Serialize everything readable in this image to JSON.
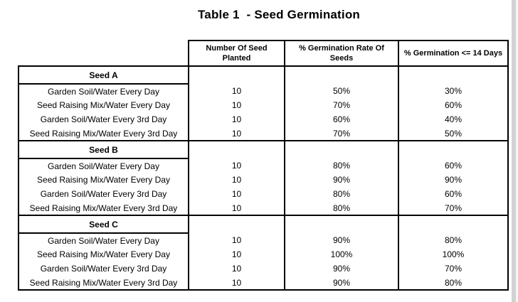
{
  "title": "Table 1  - Seed Germination",
  "colors": {
    "border": "#000000",
    "scrollbar_track": "#d2d2d2",
    "background": "#ffffff"
  },
  "table": {
    "columns": [
      "Number Of Seed Planted",
      "% Germination Rate Of Seeds",
      "% Germination <= 14 Days"
    ],
    "sections": [
      {
        "label": "Seed A",
        "rows": [
          {
            "condition": "Garden Soil/Water Every Day",
            "planted": "10",
            "germination_rate": "50%",
            "germination_14_days": "30%"
          },
          {
            "condition": "Seed Raising Mix/Water Every Day",
            "planted": "10",
            "germination_rate": "70%",
            "germination_14_days": "60%"
          },
          {
            "condition": "Garden Soil/Water Every 3rd Day",
            "planted": "10",
            "germination_rate": "60%",
            "germination_14_days": "40%"
          },
          {
            "condition": "Seed Raising Mix/Water Every 3rd Day",
            "planted": "10",
            "germination_rate": "70%",
            "germination_14_days": "50%"
          }
        ]
      },
      {
        "label": "Seed B",
        "rows": [
          {
            "condition": "Garden Soil/Water Every Day",
            "planted": "10",
            "germination_rate": "80%",
            "germination_14_days": "60%"
          },
          {
            "condition": "Seed Raising Mix/Water Every Day",
            "planted": "10",
            "germination_rate": "90%",
            "germination_14_days": "90%"
          },
          {
            "condition": "Garden Soil/Water Every 3rd Day",
            "planted": "10",
            "germination_rate": "80%",
            "germination_14_days": "60%"
          },
          {
            "condition": "Seed Raising Mix/Water Every 3rd Day",
            "planted": "10",
            "germination_rate": "80%",
            "germination_14_days": "70%"
          }
        ]
      },
      {
        "label": "Seed C",
        "rows": [
          {
            "condition": "Garden Soil/Water Every Day",
            "planted": "10",
            "germination_rate": "90%",
            "germination_14_days": "80%"
          },
          {
            "condition": "Seed Raising Mix/Water Every Day",
            "planted": "10",
            "germination_rate": "100%",
            "germination_14_days": "100%"
          },
          {
            "condition": "Garden Soil/Water Every 3rd Day",
            "planted": "10",
            "germination_rate": "90%",
            "germination_14_days": "70%"
          },
          {
            "condition": "Seed Raising Mix/Water Every 3rd Day",
            "planted": "10",
            "germination_rate": "90%",
            "germination_14_days": "80%"
          }
        ]
      }
    ]
  }
}
